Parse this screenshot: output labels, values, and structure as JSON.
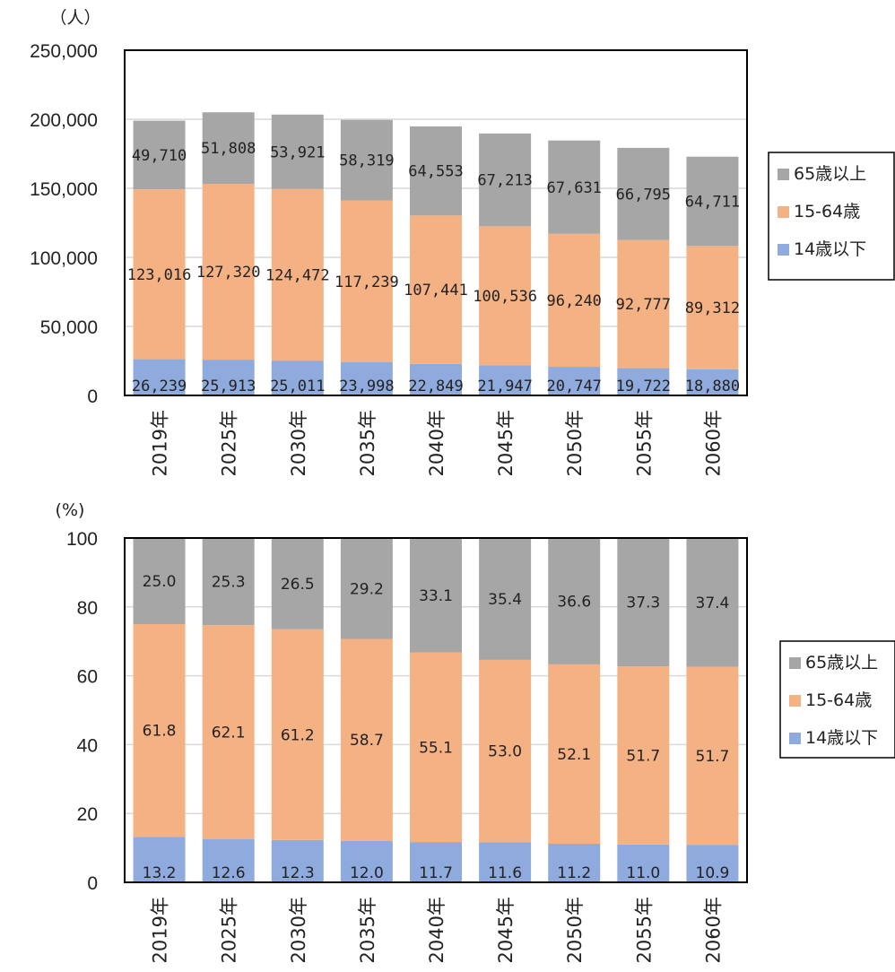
{
  "chart_data": [
    {
      "type": "bar",
      "stacked": true,
      "unit": "（人）",
      "categories": [
        "2019年",
        "2025年",
        "2030年",
        "2035年",
        "2040年",
        "2045年",
        "2050年",
        "2055年",
        "2060年"
      ],
      "series": [
        {
          "name": "14歳以下",
          "color": "#8faadc",
          "values": [
            26239,
            25913,
            25011,
            23998,
            22849,
            21947,
            20747,
            19722,
            18880
          ],
          "labels": [
            "26,239",
            "25,913",
            "25,011",
            "23,998",
            "22,849",
            "21,947",
            "20,747",
            "19,722",
            "18,880"
          ]
        },
        {
          "name": "15-64歳",
          "color": "#f4b183",
          "values": [
            123016,
            127320,
            124472,
            117239,
            107441,
            100536,
            96240,
            92777,
            89312
          ],
          "labels": [
            "123,016",
            "127,320",
            "124,472",
            "117,239",
            "107,441",
            "100,536",
            "96,240",
            "92,777",
            "89,312"
          ]
        },
        {
          "name": "65歳以上",
          "color": "#a6a6a6",
          "values": [
            49710,
            51808,
            53921,
            58319,
            64553,
            67213,
            67631,
            66795,
            64711
          ],
          "labels": [
            "49,710",
            "51,808",
            "53,921",
            "58,319",
            "64,553",
            "67,213",
            "67,631",
            "66,795",
            "64,711"
          ]
        }
      ],
      "ylim": [
        0,
        250000
      ],
      "yticks": [
        0,
        50000,
        100000,
        150000,
        200000,
        250000
      ],
      "ytick_labels": [
        "0",
        "50,000",
        "100,000",
        "150,000",
        "200,000",
        "250,000"
      ],
      "grid": true,
      "legend": "right"
    },
    {
      "type": "bar",
      "stacked": true,
      "unit": "(%)",
      "categories": [
        "2019年",
        "2025年",
        "2030年",
        "2035年",
        "2040年",
        "2045年",
        "2050年",
        "2055年",
        "2060年"
      ],
      "series": [
        {
          "name": "14歳以下",
          "color": "#8faadc",
          "values": [
            13.2,
            12.6,
            12.3,
            12.0,
            11.7,
            11.6,
            11.2,
            11.0,
            10.9
          ],
          "labels": [
            "13.2",
            "12.6",
            "12.3",
            "12.0",
            "11.7",
            "11.6",
            "11.2",
            "11.0",
            "10.9"
          ]
        },
        {
          "name": "15-64歳",
          "color": "#f4b183",
          "values": [
            61.8,
            62.1,
            61.2,
            58.7,
            55.1,
            53.0,
            52.1,
            51.7,
            51.7
          ],
          "labels": [
            "61.8",
            "62.1",
            "61.2",
            "58.7",
            "55.1",
            "53.0",
            "52.1",
            "51.7",
            "51.7"
          ]
        },
        {
          "name": "65歳以上",
          "color": "#a6a6a6",
          "values": [
            25.0,
            25.3,
            26.5,
            29.2,
            33.1,
            35.4,
            36.6,
            37.3,
            37.4
          ],
          "labels": [
            "25.0",
            "25.3",
            "26.5",
            "29.2",
            "33.1",
            "35.4",
            "36.6",
            "37.3",
            "37.4"
          ]
        }
      ],
      "ylim": [
        0,
        100
      ],
      "yticks": [
        0,
        20,
        40,
        60,
        80,
        100
      ],
      "ytick_labels": [
        "0",
        "20",
        "40",
        "60",
        "80",
        "100"
      ],
      "grid": true,
      "legend": "right"
    }
  ]
}
